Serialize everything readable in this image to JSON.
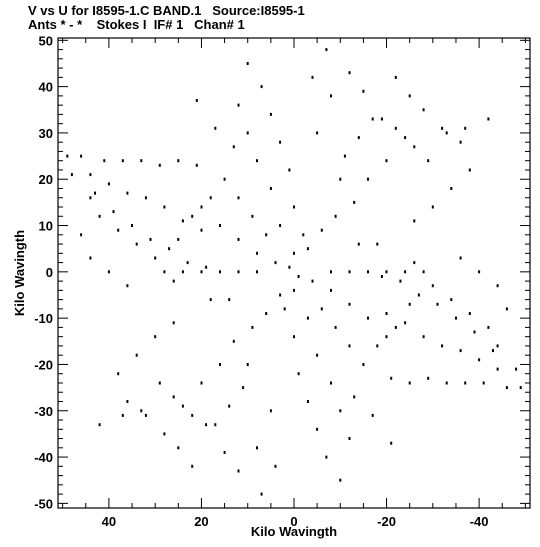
{
  "chart_data": {
    "type": "scatter",
    "title_line1": "V vs U for I8595-1.C BAND.1   Source:I8595-1",
    "title_line2": "Ants * - *    Stokes I  IF# 1   Chan# 1",
    "xlabel": "Kilo Wavingth",
    "ylabel": "Kilo Wavingth",
    "xlim": [
      51,
      -51
    ],
    "ylim": [
      -51,
      50.5
    ],
    "x_reversed": true,
    "grid": false,
    "x_ticks": [
      40,
      20,
      0,
      -20,
      -40
    ],
    "y_ticks": [
      50,
      40,
      30,
      20,
      10,
      0,
      -10,
      -20,
      -30,
      -40,
      -50
    ],
    "x_minor_step": 5,
    "y_minor_step": 2,
    "marker_color": "#000000",
    "coverage": {
      "pattern": "six-arm snowflake (Y-shaped array, symmetric u-v coverage)",
      "arm_angles_deg": [
        90,
        150,
        210,
        270,
        330,
        30
      ],
      "max_radius": 49,
      "arm_tips": [
        [
          0,
          49
        ],
        [
          -42.4,
          24.5
        ],
        [
          -42.4,
          -24.5
        ],
        [
          0,
          -49
        ],
        [
          42.4,
          -24.5
        ],
        [
          42.4,
          24.5
        ]
      ]
    },
    "points": [
      [
        49,
        25
      ],
      [
        48,
        21
      ],
      [
        46,
        25
      ],
      [
        44,
        21
      ],
      [
        43,
        17
      ],
      [
        41,
        24
      ],
      [
        40,
        19
      ],
      [
        39,
        13
      ],
      [
        37,
        24
      ],
      [
        36,
        17
      ],
      [
        35,
        10
      ],
      [
        33,
        24
      ],
      [
        32,
        16
      ],
      [
        31,
        7
      ],
      [
        29,
        23
      ],
      [
        28,
        14
      ],
      [
        27,
        5
      ],
      [
        26,
        -2
      ],
      [
        25,
        24
      ],
      [
        24,
        11
      ],
      [
        23,
        2
      ],
      [
        21,
        23
      ],
      [
        20,
        9
      ],
      [
        19,
        1
      ],
      [
        18,
        -6
      ],
      [
        -49,
        -25
      ],
      [
        -48,
        -21
      ],
      [
        -46,
        -25
      ],
      [
        -44,
        -21
      ],
      [
        -43,
        -17
      ],
      [
        -41,
        -24
      ],
      [
        -40,
        -19
      ],
      [
        -39,
        -13
      ],
      [
        -37,
        -24
      ],
      [
        -36,
        -17
      ],
      [
        -35,
        -10
      ],
      [
        -33,
        -24
      ],
      [
        -32,
        -16
      ],
      [
        -31,
        -7
      ],
      [
        -29,
        -23
      ],
      [
        -28,
        -14
      ],
      [
        -27,
        -5
      ],
      [
        -26,
        2
      ],
      [
        -25,
        -24
      ],
      [
        -24,
        -11
      ],
      [
        -23,
        -2
      ],
      [
        -21,
        -23
      ],
      [
        -20,
        -9
      ],
      [
        -19,
        -1
      ],
      [
        -18,
        6
      ],
      [
        10,
        45
      ],
      [
        7,
        40
      ],
      [
        12,
        36
      ],
      [
        5,
        34
      ],
      [
        10,
        30
      ],
      [
        3,
        28
      ],
      [
        8,
        24
      ],
      [
        1,
        22
      ],
      [
        5,
        18
      ],
      [
        0,
        14
      ],
      [
        3,
        10
      ],
      [
        -2,
        8
      ],
      [
        0,
        4
      ],
      [
        1,
        1
      ],
      [
        -10,
        -45
      ],
      [
        -7,
        -40
      ],
      [
        -12,
        -36
      ],
      [
        -5,
        -34
      ],
      [
        -10,
        -30
      ],
      [
        -3,
        -28
      ],
      [
        -8,
        -24
      ],
      [
        -1,
        -22
      ],
      [
        -5,
        -18
      ],
      [
        0,
        -14
      ],
      [
        -3,
        -10
      ],
      [
        2,
        -8
      ],
      [
        0,
        -4
      ],
      [
        -1,
        -1
      ],
      [
        -7,
        48
      ],
      [
        -12,
        43
      ],
      [
        -15,
        39
      ],
      [
        -19,
        33
      ],
      [
        -22,
        31
      ],
      [
        -26,
        27
      ],
      [
        -29,
        24
      ],
      [
        -33,
        30
      ],
      [
        -37,
        31
      ],
      [
        -42,
        33
      ],
      [
        7,
        -48
      ],
      [
        12,
        -43
      ],
      [
        15,
        -39
      ],
      [
        19,
        -33
      ],
      [
        22,
        -31
      ],
      [
        26,
        -27
      ],
      [
        29,
        -24
      ],
      [
        33,
        -30
      ],
      [
        37,
        -31
      ],
      [
        42,
        -33
      ],
      [
        30,
        -14
      ],
      [
        34,
        -18
      ],
      [
        38,
        -22
      ],
      [
        36,
        -28
      ],
      [
        32,
        -31
      ],
      [
        28,
        -35
      ],
      [
        25,
        -38
      ],
      [
        22,
        -42
      ],
      [
        17,
        -33
      ],
      [
        14,
        -29
      ],
      [
        11,
        -25
      ],
      [
        24,
        -29
      ],
      [
        20,
        -24
      ],
      [
        16,
        -20
      ],
      [
        13,
        -15
      ],
      [
        9,
        -12
      ],
      [
        6,
        -9
      ],
      [
        3,
        -5
      ],
      [
        -30,
        14
      ],
      [
        -34,
        18
      ],
      [
        -38,
        22
      ],
      [
        -36,
        28
      ],
      [
        -32,
        31
      ],
      [
        -28,
        35
      ],
      [
        -25,
        38
      ],
      [
        -22,
        42
      ],
      [
        -17,
        33
      ],
      [
        -14,
        29
      ],
      [
        -11,
        25
      ],
      [
        -24,
        29
      ],
      [
        -20,
        24
      ],
      [
        -16,
        20
      ],
      [
        -13,
        15
      ],
      [
        -9,
        12
      ],
      [
        -6,
        9
      ],
      [
        -3,
        5
      ],
      [
        15,
        20
      ],
      [
        12,
        16
      ],
      [
        9,
        12
      ],
      [
        6,
        8
      ],
      [
        20,
        14
      ],
      [
        16,
        10
      ],
      [
        12,
        7
      ],
      [
        8,
        4
      ],
      [
        4,
        2
      ],
      [
        -15,
        -20
      ],
      [
        -12,
        -16
      ],
      [
        -9,
        -12
      ],
      [
        -6,
        -8
      ],
      [
        -20,
        -14
      ],
      [
        -16,
        -10
      ],
      [
        -12,
        -7
      ],
      [
        -8,
        -4
      ],
      [
        -4,
        -2
      ],
      [
        -30,
        -3
      ],
      [
        -34,
        -6
      ],
      [
        -38,
        -9
      ],
      [
        -42,
        -12
      ],
      [
        -44,
        -16
      ],
      [
        -36,
        3
      ],
      [
        -40,
        0
      ],
      [
        -44,
        -3
      ],
      [
        -46,
        -8
      ],
      [
        -25,
        -7
      ],
      [
        -22,
        -12
      ],
      [
        -18,
        -16
      ],
      [
        30,
        3
      ],
      [
        34,
        6
      ],
      [
        38,
        9
      ],
      [
        42,
        12
      ],
      [
        44,
        16
      ],
      [
        36,
        -3
      ],
      [
        40,
        0
      ],
      [
        44,
        3
      ],
      [
        46,
        8
      ],
      [
        25,
        7
      ],
      [
        22,
        12
      ],
      [
        18,
        16
      ],
      [
        28,
        0
      ],
      [
        24,
        0
      ],
      [
        20,
        0
      ],
      [
        16,
        0
      ],
      [
        12,
        0
      ],
      [
        8,
        0
      ],
      [
        -8,
        0
      ],
      [
        -12,
        0
      ],
      [
        -16,
        0
      ],
      [
        -20,
        0
      ],
      [
        -24,
        0
      ],
      [
        -28,
        0
      ],
      [
        17,
        31
      ],
      [
        13,
        27
      ],
      [
        -17,
        -31
      ],
      [
        -13,
        -27
      ],
      [
        -8,
        38
      ],
      [
        -4,
        42
      ],
      [
        8,
        -38
      ],
      [
        4,
        -42
      ],
      [
        21,
        37
      ],
      [
        -21,
        -37
      ],
      [
        -26,
        11
      ],
      [
        26,
        -11
      ],
      [
        -14,
        6
      ],
      [
        14,
        -6
      ],
      [
        -5,
        30
      ],
      [
        5,
        -30
      ],
      [
        -10,
        20
      ],
      [
        10,
        -20
      ]
    ]
  }
}
